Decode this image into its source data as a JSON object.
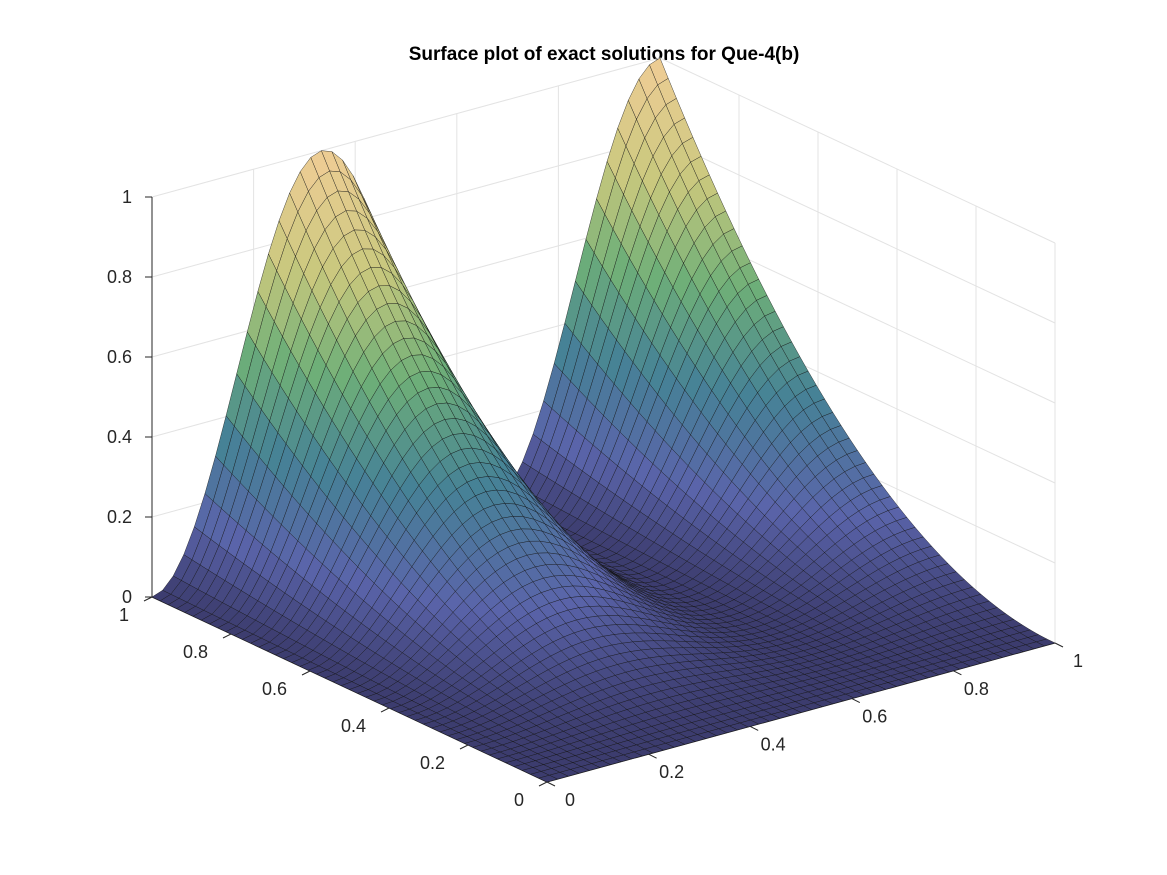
{
  "chart_data": {
    "type": "surface",
    "title": "Surface plot of exact solutions for Que-4(b)",
    "xlabel": "",
    "ylabel": "",
    "zlabel": "",
    "xlim": [
      0,
      1
    ],
    "ylim": [
      0,
      1
    ],
    "zlim": [
      0,
      1
    ],
    "x_ticks": [
      "0",
      "0.2",
      "0.4",
      "0.6",
      "0.8",
      "1"
    ],
    "y_ticks": [
      "0",
      "0.2",
      "0.4",
      "0.6",
      "0.8",
      "1"
    ],
    "z_ticks": [
      "0",
      "0.2",
      "0.4",
      "0.6",
      "0.8",
      "1"
    ],
    "grid": true,
    "box": false,
    "colormap": "parula-like (dark navy low, blue-green mid, yellow/tan high)",
    "function": "z = y^2 * (0.5 + 0.5*sin(pi*(3*x - 0.5)))  (approximate shape)",
    "samples": [
      {
        "x": 0.0,
        "y": 1.0,
        "z": 0.0
      },
      {
        "x": 0.0,
        "y": 0.0,
        "z": 0.0
      },
      {
        "x": 0.33,
        "y": 1.0,
        "z": 1.0
      },
      {
        "x": 0.5,
        "y": 1.0,
        "z": 0.5
      },
      {
        "x": 0.67,
        "y": 1.0,
        "z": 0.0
      },
      {
        "x": 1.0,
        "y": 1.0,
        "z": 1.0
      }
    ],
    "grid_resolution": 48
  }
}
